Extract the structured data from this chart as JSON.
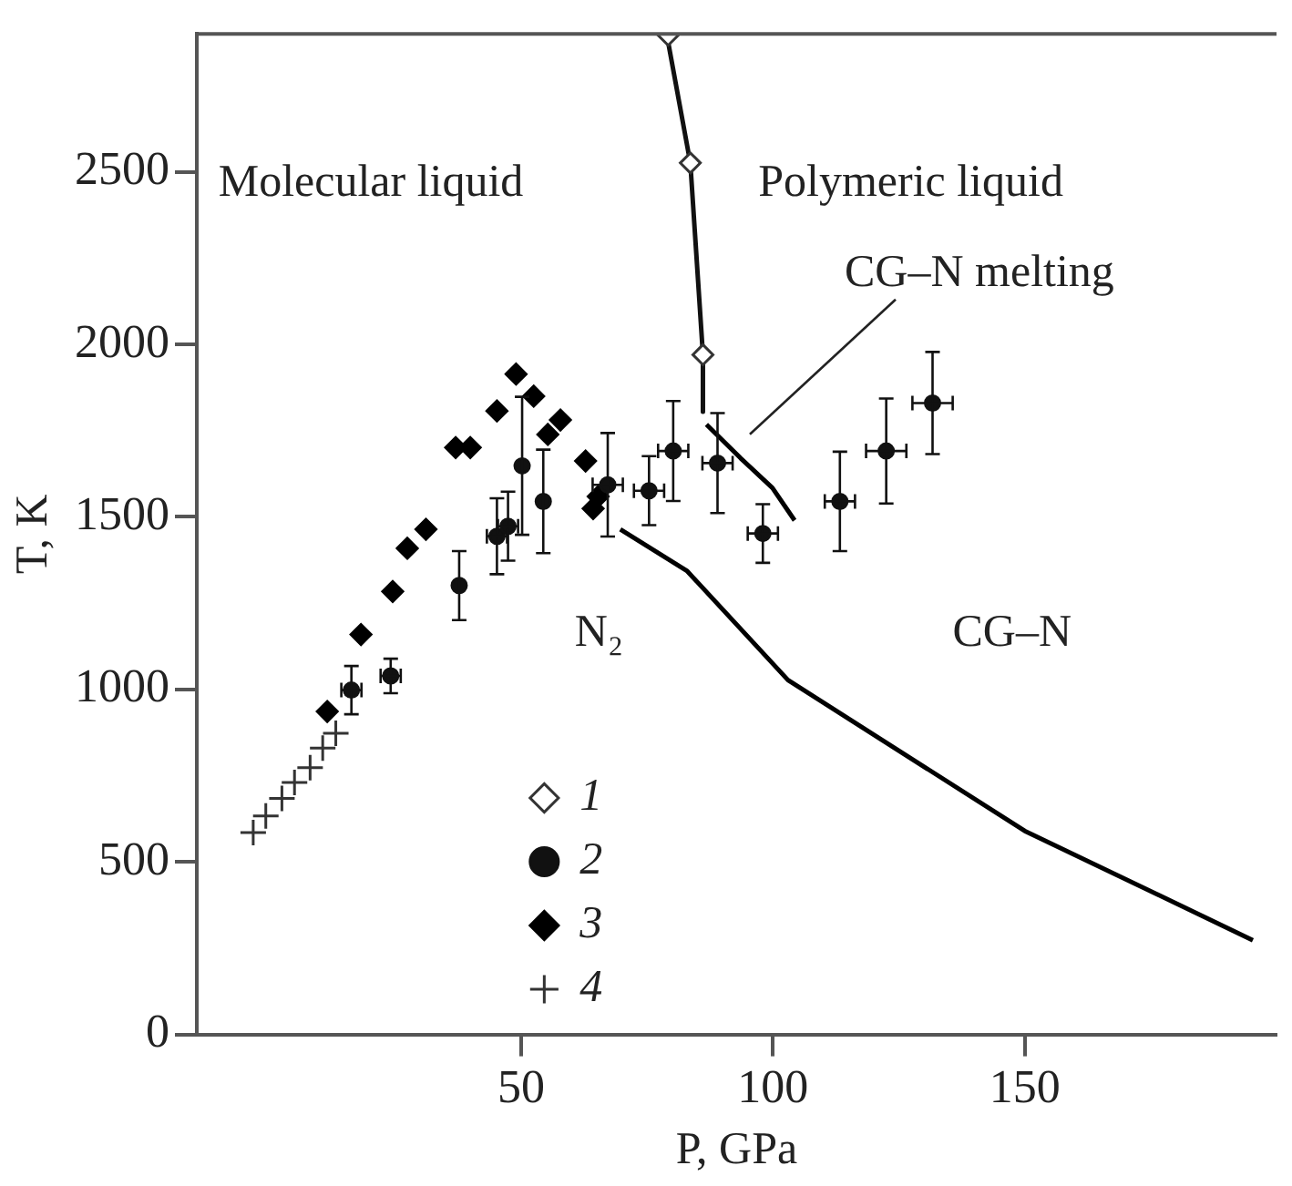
{
  "chart_data": {
    "type": "scatter",
    "xlabel": "P, GPa",
    "ylabel": "T, K",
    "xlim": [
      -14.4,
      200
    ],
    "xticks": [
      50,
      100,
      150
    ],
    "ylim": [
      0,
      2900
    ],
    "yticks": [
      0,
      500,
      1000,
      1500,
      2000,
      2500
    ],
    "grid": false,
    "legend": "bottom",
    "annotations": [
      "Molecular liquid",
      "Polymeric liquid",
      "CG–N melting",
      "N₂",
      "CG–N"
    ],
    "series": [
      {
        "name": "1",
        "color": "#333333",
        "marker": "diamond",
        "x": [
          79.2,
          83.6,
          86.1
        ],
        "values": [
          2896,
          2526,
          1970
        ]
      },
      {
        "name": "2",
        "color": "#111111",
        "marker": "circle",
        "x": [
          16.3,
          24.1,
          37.7,
          45.2,
          47.4,
          50.2,
          54.4,
          67.2,
          75.4,
          80.2,
          89,
          98,
          113.3,
          122.5,
          131.7
        ],
        "values": [
          998,
          1039,
          1301,
          1444,
          1473,
          1648,
          1545,
          1593,
          1576,
          1691,
          1656,
          1452,
          1545,
          1691,
          1830
        ],
        "errors": [
          70,
          50,
          100,
          110,
          100,
          200,
          150,
          150,
          100,
          145,
          145,
          85,
          144,
          152,
          148
        ],
        "xerrors": [
          2,
          2,
          null,
          2,
          2,
          null,
          null,
          3,
          3,
          3,
          3,
          3,
          3,
          4,
          4
        ]
      },
      {
        "name": "3",
        "color": "#000000",
        "marker": "diamond",
        "x": [
          11.5,
          18.2,
          24.5,
          27.4,
          31.1,
          37,
          39.9,
          45.2,
          49,
          52.5,
          55.3,
          57.8,
          62.8,
          64.3,
          65.3
        ],
        "values": [
          936,
          1159,
          1284,
          1409,
          1464,
          1701,
          1701,
          1807,
          1914,
          1850,
          1739,
          1781,
          1662,
          1524,
          1559
        ]
      },
      {
        "name": "4",
        "color": "#333333",
        "marker": "cross",
        "x": [
          -3.2,
          -0.7,
          2.5,
          5,
          8.1,
          10.6,
          13.2
        ],
        "values": [
          585,
          633,
          684,
          730,
          773,
          830,
          873
        ]
      },
      {
        "type": "line",
        "color": "#111111",
        "marker": "none",
        "x": [
          78.9,
          83.6,
          86.1,
          86.1
        ],
        "values": [
          2900,
          2526,
          1970,
          1805
        ]
      },
      {
        "type": "line",
        "color": "#000000",
        "marker": "none",
        "x": [
          86.8,
          93.6,
          99.9,
          104.3
        ],
        "values": [
          1768,
          1670,
          1584,
          1490
        ]
      },
      {
        "type": "line",
        "color": "#000000",
        "marker": "none",
        "x": [
          69.7,
          82.9,
          103,
          150,
          195.3
        ],
        "values": [
          1464,
          1344,
          1027,
          590,
          273
        ]
      }
    ]
  }
}
